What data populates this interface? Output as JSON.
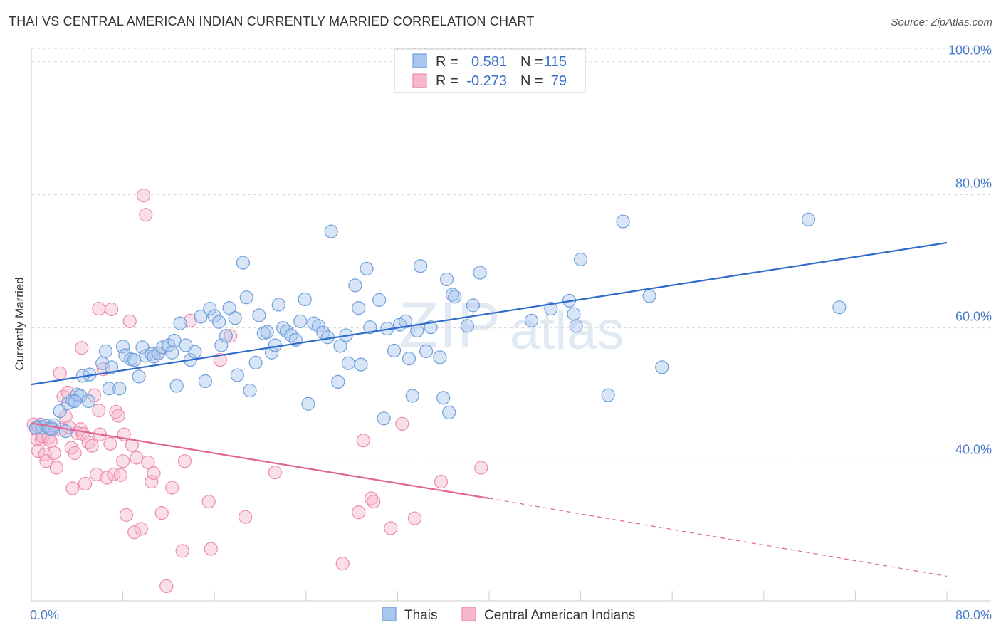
{
  "title": "THAI VS CENTRAL AMERICAN INDIAN CURRENTLY MARRIED CORRELATION CHART",
  "source": "Source: ZipAtlas.com",
  "watermark": {
    "part1": "ZIP",
    "part2": "atlas"
  },
  "colors": {
    "thais_fill": "#a9c6ee",
    "thais_stroke": "#6f9fdb",
    "thais_line": "#2d6ccb",
    "cai_fill": "#f7b8cd",
    "cai_stroke": "#ec8aad",
    "cai_line": "#e06592",
    "grid": "#d9d9d9",
    "axis": "#cccccc"
  },
  "stats_box": {
    "rows": [
      {
        "series": "thais",
        "r_label": "R =",
        "r_value": "0.581",
        "n_label": "N =",
        "n_value": "115"
      },
      {
        "series": "cai",
        "r_label": "R =",
        "r_value": "-0.273",
        "n_label": "N =",
        "n_value": "79"
      }
    ]
  },
  "chart_data": {
    "type": "scatter",
    "title": "THAI VS CENTRAL AMERICAN INDIAN CURRENTLY MARRIED CORRELATION CHART",
    "xlabel": "",
    "ylabel": "Currently Married",
    "xlim": [
      0,
      80
    ],
    "ylim": [
      19,
      102
    ],
    "x_ticks": [
      0,
      8,
      16,
      24,
      32,
      40,
      48,
      56,
      64,
      72,
      80
    ],
    "x_tick_labels": {
      "0": "0.0%",
      "80": "80.0%"
    },
    "y_ticks": [
      40,
      60,
      80,
      100
    ],
    "y_tick_labels": [
      "40.0%",
      "60.0%",
      "80.0%",
      "100.0%"
    ],
    "grid": true,
    "legend_position": "bottom-center",
    "series": [
      {
        "name": "Thais",
        "key": "thais",
        "r": 0.581,
        "n": 115,
        "trend": {
          "x": [
            0,
            80
          ],
          "y": [
            51.5,
            72.8
          ]
        },
        "points": [
          [
            0.6,
            45.2
          ],
          [
            1.0,
            45.0
          ],
          [
            1.3,
            45.3
          ],
          [
            1.6,
            44.9
          ],
          [
            2.0,
            45.4
          ],
          [
            2.5,
            47.5
          ],
          [
            3.0,
            44.5
          ],
          [
            3.2,
            48.7
          ],
          [
            3.6,
            49.1
          ],
          [
            4.0,
            50.0
          ],
          [
            4.3,
            49.8
          ],
          [
            4.5,
            52.8
          ],
          [
            5.0,
            49.0
          ],
          [
            5.1,
            53.0
          ],
          [
            6.2,
            54.7
          ],
          [
            6.5,
            56.5
          ],
          [
            6.8,
            50.9
          ],
          [
            7.0,
            54.1
          ],
          [
            7.7,
            50.9
          ],
          [
            8.0,
            57.2
          ],
          [
            8.2,
            55.9
          ],
          [
            8.7,
            55.3
          ],
          [
            9.0,
            55.2
          ],
          [
            9.4,
            52.7
          ],
          [
            9.7,
            57.1
          ],
          [
            10.0,
            55.8
          ],
          [
            10.5,
            56.1
          ],
          [
            10.7,
            55.7
          ],
          [
            11.1,
            56.2
          ],
          [
            11.5,
            57.1
          ],
          [
            12.0,
            57.4
          ],
          [
            12.3,
            56.3
          ],
          [
            12.5,
            58.1
          ],
          [
            12.7,
            51.3
          ],
          [
            13.0,
            60.7
          ],
          [
            13.5,
            57.4
          ],
          [
            13.9,
            55.2
          ],
          [
            14.3,
            56.4
          ],
          [
            14.8,
            61.7
          ],
          [
            15.2,
            52.0
          ],
          [
            15.6,
            62.9
          ],
          [
            16.0,
            61.8
          ],
          [
            16.4,
            60.9
          ],
          [
            16.6,
            57.4
          ],
          [
            17.0,
            58.8
          ],
          [
            17.3,
            63.0
          ],
          [
            17.8,
            61.5
          ],
          [
            18.0,
            52.9
          ],
          [
            18.5,
            69.8
          ],
          [
            18.8,
            64.6
          ],
          [
            19.1,
            50.6
          ],
          [
            19.6,
            54.8
          ],
          [
            19.9,
            61.9
          ],
          [
            20.3,
            59.2
          ],
          [
            20.6,
            59.4
          ],
          [
            21.0,
            56.3
          ],
          [
            21.3,
            57.4
          ],
          [
            21.6,
            63.5
          ],
          [
            22.0,
            60.0
          ],
          [
            22.3,
            59.5
          ],
          [
            22.7,
            58.9
          ],
          [
            23.1,
            58.2
          ],
          [
            23.5,
            61.0
          ],
          [
            23.9,
            64.3
          ],
          [
            24.2,
            48.6
          ],
          [
            24.7,
            60.7
          ],
          [
            25.1,
            60.3
          ],
          [
            25.5,
            59.3
          ],
          [
            25.9,
            58.6
          ],
          [
            26.2,
            74.5
          ],
          [
            26.8,
            51.9
          ],
          [
            27.0,
            57.3
          ],
          [
            27.5,
            58.9
          ],
          [
            27.7,
            54.7
          ],
          [
            28.3,
            66.4
          ],
          [
            28.6,
            63.0
          ],
          [
            28.8,
            54.5
          ],
          [
            29.3,
            68.9
          ],
          [
            29.6,
            60.1
          ],
          [
            30.4,
            64.2
          ],
          [
            30.8,
            46.4
          ],
          [
            31.1,
            59.9
          ],
          [
            31.7,
            56.6
          ],
          [
            32.2,
            60.5
          ],
          [
            32.7,
            61.0
          ],
          [
            33.0,
            55.4
          ],
          [
            33.3,
            49.8
          ],
          [
            33.7,
            59.6
          ],
          [
            34.0,
            69.3
          ],
          [
            34.5,
            56.5
          ],
          [
            34.9,
            60.1
          ],
          [
            35.7,
            55.6
          ],
          [
            36.0,
            49.5
          ],
          [
            36.3,
            67.3
          ],
          [
            36.5,
            47.3
          ],
          [
            36.8,
            65.0
          ],
          [
            37.0,
            64.7
          ],
          [
            38.1,
            60.3
          ],
          [
            38.6,
            63.4
          ],
          [
            39.2,
            68.3
          ],
          [
            43.7,
            61.1
          ],
          [
            45.4,
            62.9
          ],
          [
            47.0,
            64.1
          ],
          [
            47.4,
            62.1
          ],
          [
            47.6,
            60.3
          ],
          [
            48.0,
            70.3
          ],
          [
            50.4,
            49.9
          ],
          [
            51.7,
            76.0
          ],
          [
            54.0,
            64.8
          ],
          [
            55.1,
            54.1
          ],
          [
            67.9,
            76.3
          ],
          [
            70.6,
            63.1
          ],
          [
            0.4,
            45.0
          ],
          [
            1.8,
            44.8
          ],
          [
            3.8,
            49.0
          ]
        ]
      },
      {
        "name": "Central American Indians",
        "key": "cai",
        "r": -0.273,
        "n": 79,
        "trend": {
          "x": [
            0,
            40
          ],
          "y": [
            45.7,
            34.4
          ]
        },
        "trend_dashed": {
          "x": [
            40,
            80
          ],
          "y": [
            34.4,
            22.7
          ]
        },
        "points": [
          [
            0.2,
            45.5
          ],
          [
            0.4,
            44.9
          ],
          [
            0.5,
            43.3
          ],
          [
            0.6,
            41.5
          ],
          [
            0.8,
            45.5
          ],
          [
            0.9,
            43.2
          ],
          [
            1.0,
            43.7
          ],
          [
            1.2,
            41.0
          ],
          [
            1.3,
            40.0
          ],
          [
            1.5,
            43.5
          ],
          [
            1.7,
            43.0
          ],
          [
            1.8,
            45.0
          ],
          [
            2.0,
            41.2
          ],
          [
            2.2,
            39.0
          ],
          [
            2.5,
            53.2
          ],
          [
            2.6,
            44.7
          ],
          [
            2.8,
            49.7
          ],
          [
            3.0,
            46.7
          ],
          [
            3.2,
            50.3
          ],
          [
            3.3,
            45.1
          ],
          [
            3.5,
            42.0
          ],
          [
            3.6,
            35.9
          ],
          [
            3.8,
            41.2
          ],
          [
            4.0,
            44.2
          ],
          [
            4.3,
            44.8
          ],
          [
            4.4,
            57.0
          ],
          [
            4.5,
            44.1
          ],
          [
            4.7,
            36.6
          ],
          [
            5.0,
            42.8
          ],
          [
            5.3,
            42.3
          ],
          [
            5.5,
            49.9
          ],
          [
            5.7,
            38.0
          ],
          [
            5.9,
            47.6
          ],
          [
            6.0,
            44.0
          ],
          [
            6.3,
            53.8
          ],
          [
            6.6,
            37.5
          ],
          [
            6.9,
            42.6
          ],
          [
            7.0,
            62.8
          ],
          [
            7.2,
            38.0
          ],
          [
            7.4,
            47.4
          ],
          [
            7.6,
            46.8
          ],
          [
            7.8,
            37.9
          ],
          [
            8.0,
            40.0
          ],
          [
            8.1,
            44.0
          ],
          [
            8.3,
            31.9
          ],
          [
            8.6,
            61.0
          ],
          [
            8.8,
            42.4
          ],
          [
            9.0,
            29.3
          ],
          [
            9.2,
            40.5
          ],
          [
            9.6,
            29.8
          ],
          [
            9.8,
            79.9
          ],
          [
            10.0,
            77.0
          ],
          [
            10.2,
            39.8
          ],
          [
            10.5,
            36.9
          ],
          [
            10.7,
            38.2
          ],
          [
            11.1,
            56.2
          ],
          [
            11.4,
            32.2
          ],
          [
            11.8,
            21.2
          ],
          [
            12.3,
            36.0
          ],
          [
            13.2,
            26.5
          ],
          [
            13.4,
            40.0
          ],
          [
            13.9,
            61.1
          ],
          [
            15.5,
            33.9
          ],
          [
            15.7,
            26.8
          ],
          [
            16.5,
            55.2
          ],
          [
            17.4,
            58.8
          ],
          [
            18.7,
            31.6
          ],
          [
            21.3,
            38.3
          ],
          [
            27.2,
            24.6
          ],
          [
            28.6,
            32.3
          ],
          [
            29.0,
            43.1
          ],
          [
            29.7,
            34.4
          ],
          [
            29.9,
            33.9
          ],
          [
            31.4,
            29.9
          ],
          [
            32.4,
            45.6
          ],
          [
            33.5,
            31.4
          ],
          [
            35.8,
            36.9
          ],
          [
            39.3,
            39.0
          ],
          [
            5.9,
            62.9
          ]
        ]
      }
    ]
  },
  "legend": {
    "items": [
      {
        "key": "thais",
        "label": "Thais"
      },
      {
        "key": "cai",
        "label": "Central American Indians"
      }
    ]
  }
}
